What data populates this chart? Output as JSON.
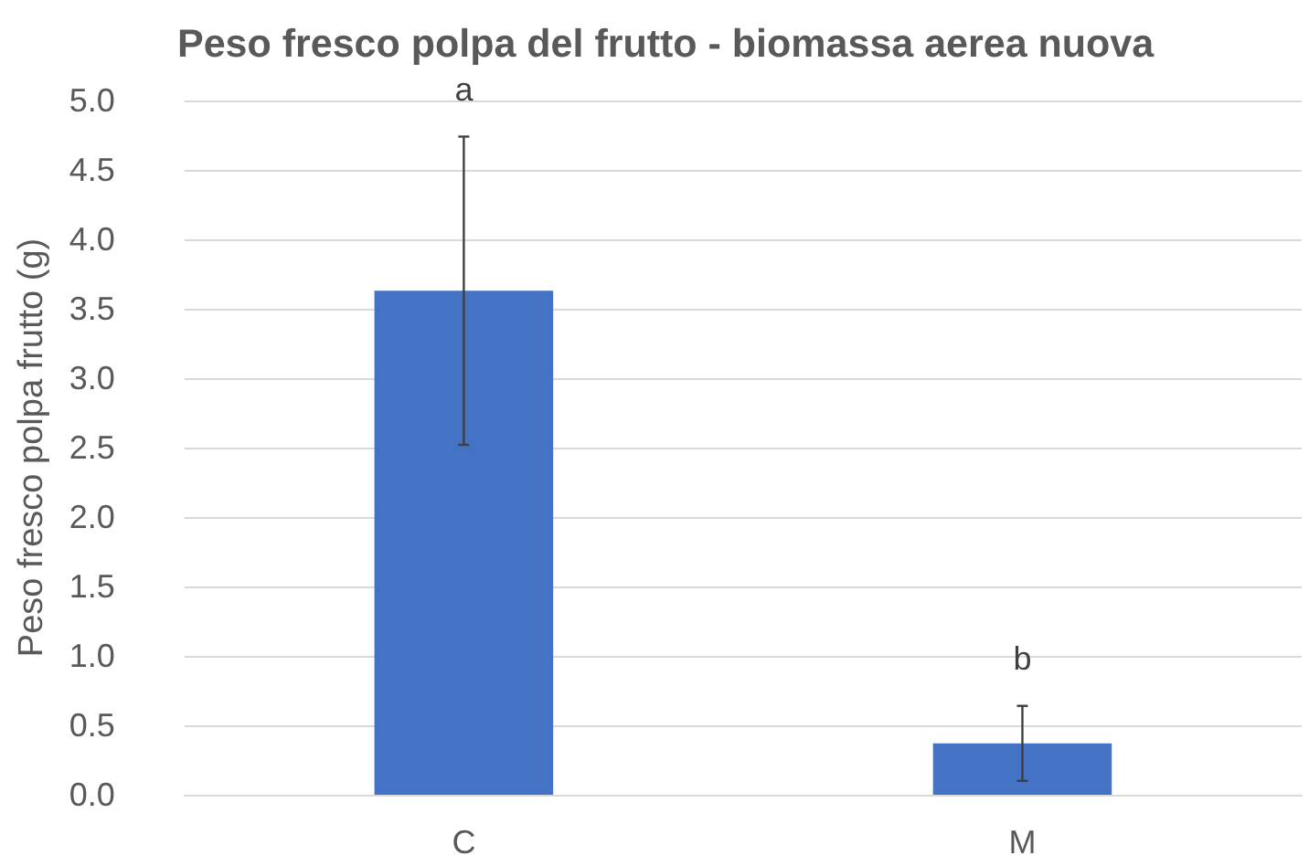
{
  "chart_data": {
    "type": "bar",
    "title": "Peso fresco polpa del frutto - biomassa aerea nuova",
    "ylabel": "Peso fresco polpa frutto (g)",
    "categories": [
      "C",
      "M"
    ],
    "values": [
      3.63,
      0.37
    ],
    "errors": [
      1.11,
      0.27
    ],
    "color": "#4472c4",
    "ylim": [
      0,
      5
    ],
    "yticks": [
      {
        "value": 0,
        "label": "0.0"
      },
      {
        "value": 0.5,
        "label": "0.5"
      },
      {
        "value": 1,
        "label": "1.0"
      },
      {
        "value": 1.5,
        "label": "1.5"
      },
      {
        "value": 2,
        "label": "2.0"
      },
      {
        "value": 2.5,
        "label": "2.5"
      },
      {
        "value": 3,
        "label": "3.0"
      },
      {
        "value": 3.5,
        "label": "3.5"
      },
      {
        "value": 4,
        "label": "4.0"
      },
      {
        "value": 4.5,
        "label": "4.5"
      },
      {
        "value": 5,
        "label": "5.0"
      }
    ],
    "grid": "y",
    "annotations": [
      "a",
      "b"
    ]
  }
}
